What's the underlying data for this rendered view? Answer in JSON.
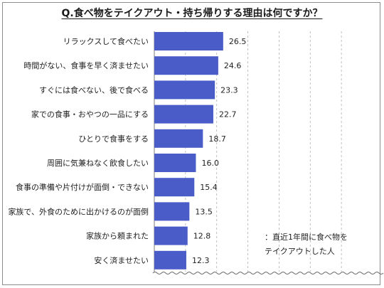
{
  "title": "Q.食べ物をテイクアウト・持ち帰りする理由は何ですか？",
  "note": {
    "line1": "：直近1年間に食べ物を",
    "line2": "テイクアウトした人"
  },
  "chart_data": {
    "type": "bar",
    "orientation": "horizontal",
    "title": "Q.食べ物をテイクアウト・持ち帰りする理由は何ですか？",
    "categories": [
      "リラックスして食べたい",
      "時間がない、食事を早く済ませたい",
      "すぐには食べない、後で食べる",
      "家での食事・おやつの一品にする",
      "ひとりで食事をする",
      "周囲に気兼ねなく飲食したい",
      "食事の準備や片付けが面倒・できない",
      "家族で、外食のために出かけるのが面倒",
      "家族から頼まれた",
      "安く済ませたい"
    ],
    "values": [
      26.5,
      24.6,
      23.3,
      22.7,
      18.7,
      16.0,
      15.4,
      13.5,
      12.8,
      12.3
    ],
    "value_labels": [
      "26.5",
      "24.6",
      "23.3",
      "22.7",
      "18.7",
      "16.0",
      "15.4",
      "13.5",
      "12.8",
      "12.3"
    ],
    "xlim": [
      0,
      84
    ],
    "grid": true,
    "axis_break": "bottom wavy line",
    "bar_color": "#4a5cc7",
    "gridline_color": "#b0b0b0"
  }
}
